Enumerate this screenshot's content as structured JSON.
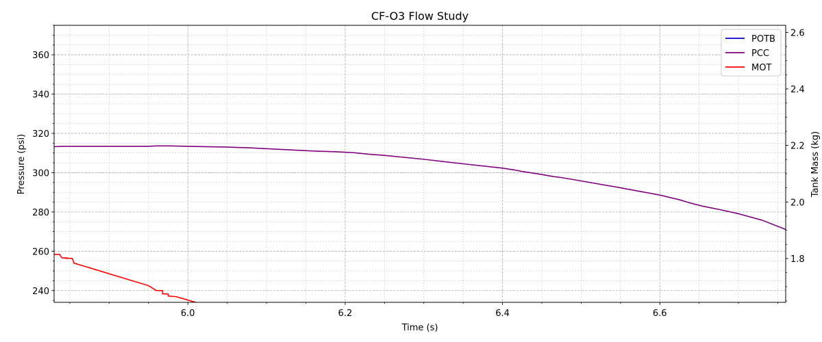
{
  "chart_data": {
    "type": "line",
    "title": "CF-O3 Flow Study",
    "xlabel": "Time (s)",
    "ylabel": "Pressure (psi)",
    "y2label": "Tank Mass (kg)",
    "xlim": [
      5.83,
      6.76
    ],
    "ylim": [
      234,
      375
    ],
    "y2lim": [
      1.645,
      2.625
    ],
    "x_ticks": [
      6.0,
      6.2,
      6.4,
      6.6
    ],
    "x_tick_labels": [
      "6.0",
      "6.2",
      "6.4",
      "6.6"
    ],
    "y_ticks": [
      240,
      260,
      280,
      300,
      320,
      340,
      360
    ],
    "y2_ticks": [
      1.8,
      2.0,
      2.2,
      2.4,
      2.6
    ],
    "y2_tick_labels": [
      "1.8",
      "2.0",
      "2.2",
      "2.4",
      "2.6"
    ],
    "grid": true,
    "legend_position": "top-right",
    "series": [
      {
        "name": "POTB",
        "color": "#0000cc",
        "axis": "left",
        "x": [],
        "y": []
      },
      {
        "name": "PCC",
        "color": "#800080",
        "axis": "left",
        "x": [
          5.83,
          5.84,
          5.95,
          5.96,
          5.98,
          6.0,
          6.05,
          6.08,
          6.12,
          6.16,
          6.19,
          6.21,
          6.22,
          6.23,
          6.24,
          6.25,
          6.3,
          6.35,
          6.4,
          6.415,
          6.425,
          6.435,
          6.445,
          6.455,
          6.465,
          6.475,
          6.5,
          6.55,
          6.6,
          6.625,
          6.635,
          6.645,
          6.655,
          6.665,
          6.675,
          6.7,
          6.73,
          6.76
        ],
        "y": [
          313.2,
          313.4,
          313.4,
          313.6,
          313.6,
          313.4,
          313.0,
          312.6,
          311.8,
          311.0,
          310.6,
          310.2,
          309.8,
          309.4,
          309.1,
          308.8,
          306.8,
          304.5,
          302.3,
          301.4,
          300.6,
          300.0,
          299.4,
          298.7,
          298.0,
          297.5,
          295.8,
          292.3,
          288.6,
          286.2,
          285.0,
          283.9,
          282.9,
          282.1,
          281.3,
          279.1,
          275.8,
          271.1
        ]
      },
      {
        "name": "MOT",
        "color": "#ff0000",
        "axis": "left",
        "x": [
          5.83,
          5.837,
          5.84,
          5.847,
          5.844,
          5.853,
          5.855,
          5.855,
          5.95,
          5.96,
          5.968,
          5.968,
          5.975,
          5.975,
          5.985,
          6.01
        ],
        "y": [
          258.4,
          258.4,
          256.6,
          256.6,
          256.4,
          256.4,
          254.5,
          254.0,
          242.5,
          240.0,
          240.0,
          238.3,
          238.3,
          237.2,
          236.9,
          234.0
        ]
      }
    ]
  }
}
